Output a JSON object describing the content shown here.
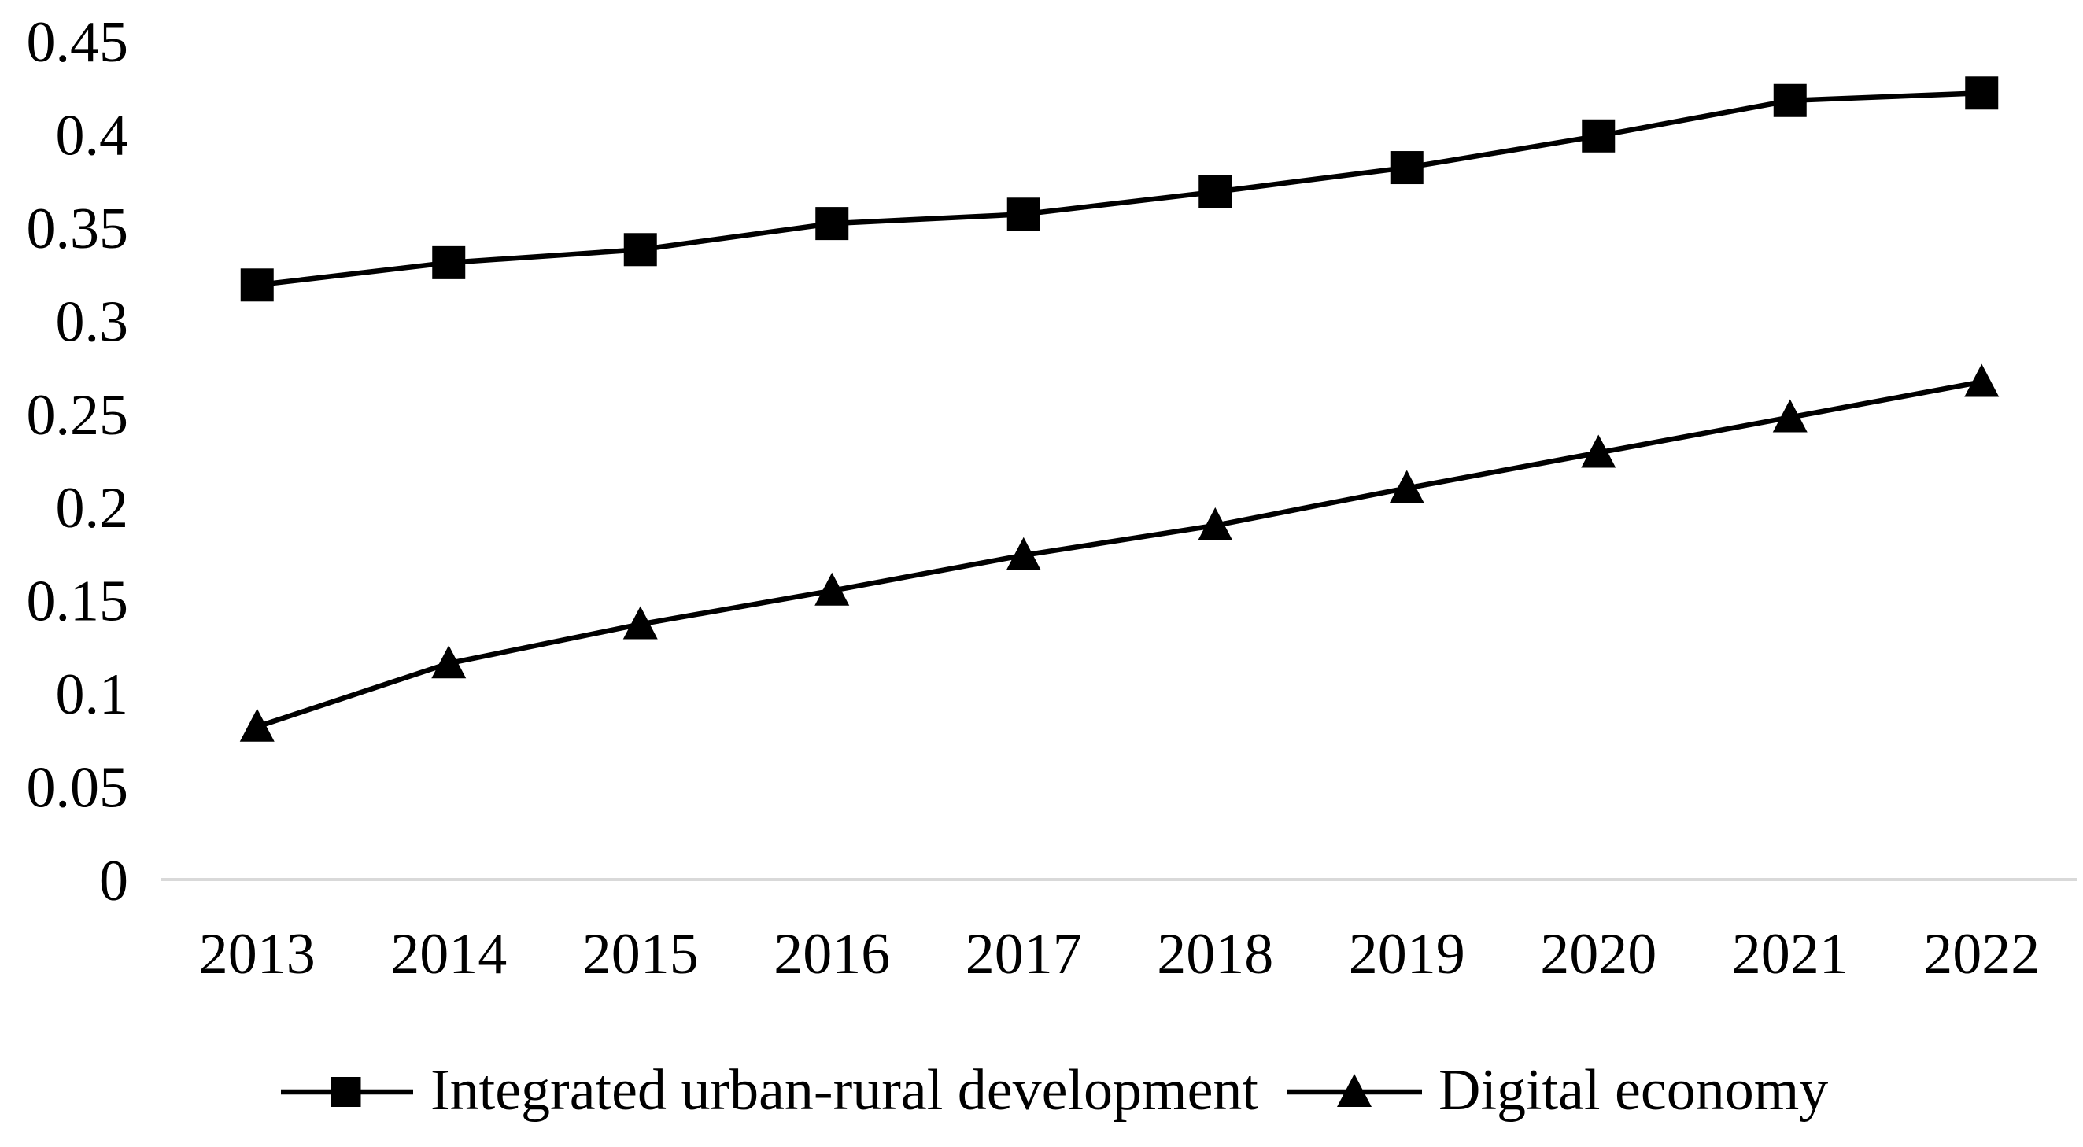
{
  "figure": {
    "background_color": "#ffffff",
    "text_color": "#000000"
  },
  "chart_data": {
    "type": "line",
    "title": "",
    "xlabel": "",
    "ylabel": "",
    "categories": [
      "2013",
      "2014",
      "2015",
      "2016",
      "2017",
      "2018",
      "2019",
      "2020",
      "2021",
      "2022"
    ],
    "series": [
      {
        "name": "Integrated urban-rural development",
        "marker": "square",
        "color": "#000000",
        "values": [
          0.319,
          0.331,
          0.338,
          0.352,
          0.357,
          0.369,
          0.382,
          0.399,
          0.418,
          0.422
        ]
      },
      {
        "name": "Digital economy",
        "marker": "triangle",
        "color": "#000000",
        "values": [
          0.082,
          0.116,
          0.137,
          0.155,
          0.174,
          0.19,
          0.21,
          0.229,
          0.248,
          0.267
        ]
      }
    ],
    "ylim": [
      0,
      0.45
    ],
    "yticks": [
      0,
      0.05,
      0.1,
      0.15,
      0.2,
      0.25,
      0.3,
      0.35,
      0.4,
      0.45
    ],
    "ytick_labels": [
      "0",
      "0.05",
      "0.1",
      "0.15",
      "0.2",
      "0.25",
      "0.3",
      "0.35",
      "0.4",
      "0.45"
    ],
    "grid": false,
    "axis_line_color": "#d9d9d9",
    "legend_position": "bottom"
  }
}
